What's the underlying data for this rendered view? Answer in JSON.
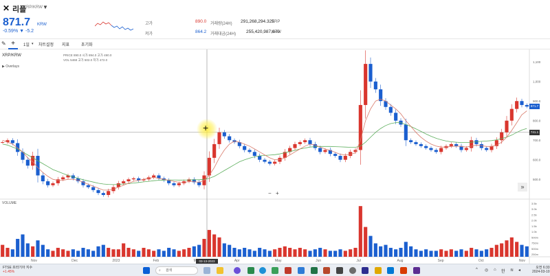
{
  "header": {
    "logo": "✕",
    "name": "리플",
    "pair": "XRP/KRW",
    "price": "871.7",
    "price_unit": "KRW",
    "change": "-0.59% ▼ -5.2",
    "high_label": "고가",
    "high_value": "890.0",
    "low_label": "저가",
    "low_value": "864.2",
    "vol_label": "거래량(24H)",
    "vol_value": "291,268,294.325",
    "vol_unit": "XRP",
    "amt_label": "거래대금(24H)",
    "amt_value": "255,420,987,670",
    "amt_unit": "KRW"
  },
  "toolbar": {
    "interval": "1일",
    "settings": "차트설정",
    "indicators": "지표",
    "reset": "초기화"
  },
  "chart": {
    "symbol": "XRP/KRW",
    "overlays": "▶ Overlays",
    "ohlc_line1": "PRICE   890.0   시가   894.0   고가   490.0",
    "ohlc_line2": "VOL     5468    고가   502.0   저가   472.0",
    "volume_label": "VOLUME",
    "crosshair_date": "03-13-2023",
    "last_price_tag": "871.7",
    "crosshair_price_tag": "741.1",
    "zoom_out": "−",
    "zoom_in": "+",
    "more": "»"
  },
  "chart_data": {
    "type": "candlestick",
    "x_ticks": [
      "Nov",
      "Dec",
      "2023",
      "Feb",
      "Mar",
      "Apr",
      "May",
      "Jun",
      "Jul",
      "Aug",
      "Sep",
      "Oct",
      "Nov"
    ],
    "y_ticks": [
      "1,100",
      "1,000",
      "900.0",
      "800.0",
      "700.0",
      "600.0",
      "500.0"
    ],
    "volume_ticks": [
      "3.5b",
      "3.0b",
      "2.5b",
      "2.0b",
      "1.5b",
      "1.0b",
      "500m",
      "750m",
      "500m",
      "250m"
    ],
    "ylim": [
      420,
      1150
    ],
    "close": [
      690,
      700,
      685,
      640,
      600,
      570,
      620,
      520,
      490,
      470,
      480,
      500,
      510,
      520,
      505,
      490,
      470,
      460,
      445,
      430,
      420,
      440,
      460,
      480,
      490,
      500,
      505,
      495,
      500,
      510,
      520,
      505,
      495,
      480,
      470,
      480,
      490,
      500,
      485,
      470,
      520,
      610,
      680,
      740,
      720,
      700,
      690,
      670,
      650,
      640,
      620,
      600,
      590,
      580,
      590,
      610,
      640,
      660,
      680,
      690,
      700,
      680,
      660,
      640,
      650,
      630,
      620,
      600,
      620,
      640,
      650,
      880,
      1090,
      1000,
      960,
      900,
      870,
      840,
      800,
      780,
      700,
      690,
      680,
      670,
      660,
      650,
      640,
      660,
      670,
      680,
      670,
      650,
      660,
      700,
      680,
      660,
      650,
      670,
      700,
      740,
      800,
      860,
      900,
      880,
      872
    ],
    "ma_fast": [
      700,
      690,
      680,
      660,
      640,
      610,
      590,
      560,
      535,
      515,
      500,
      495,
      495,
      500,
      500,
      495,
      485,
      475,
      465,
      455,
      445,
      445,
      450,
      460,
      470,
      480,
      490,
      495,
      500,
      505,
      510,
      505,
      500,
      495,
      490,
      485,
      485,
      488,
      488,
      485,
      495,
      520,
      560,
      610,
      650,
      680,
      695,
      690,
      680,
      670,
      655,
      640,
      625,
      610,
      600,
      600,
      610,
      625,
      640,
      655,
      670,
      680,
      675,
      665,
      655,
      648,
      638,
      628,
      625,
      628,
      635,
      700,
      800,
      860,
      900,
      910,
      900,
      880,
      860,
      835,
      800,
      770,
      740,
      715,
      695,
      680,
      670,
      665,
      665,
      668,
      670,
      668,
      665,
      670,
      675,
      672,
      668,
      668,
      675,
      690,
      715,
      750,
      790,
      830,
      850
    ],
    "ma_slow": [
      680,
      675,
      665,
      655,
      640,
      625,
      610,
      595,
      580,
      565,
      550,
      540,
      530,
      520,
      512,
      505,
      498,
      492,
      486,
      480,
      476,
      474,
      473,
      474,
      476,
      478,
      481,
      484,
      487,
      490,
      493,
      495,
      496,
      497,
      497,
      496,
      496,
      497,
      498,
      498,
      500,
      505,
      515,
      530,
      545,
      560,
      575,
      590,
      600,
      608,
      615,
      620,
      622,
      624,
      626,
      630,
      636,
      642,
      648,
      655,
      660,
      665,
      667,
      668,
      668,
      668,
      667,
      666,
      665,
      664,
      664,
      670,
      690,
      715,
      740,
      760,
      775,
      785,
      790,
      790,
      780,
      770,
      758,
      745,
      732,
      720,
      710,
      702,
      696,
      692,
      690,
      688,
      688,
      690,
      692,
      694,
      696,
      698,
      702,
      708,
      716,
      726,
      740,
      752,
      760
    ],
    "volume": [
      0.8,
      0.6,
      0.5,
      1.2,
      1.5,
      0.9,
      0.7,
      1.1,
      0.8,
      0.5,
      0.4,
      0.6,
      0.5,
      0.4,
      0.5,
      0.4,
      0.6,
      0.5,
      0.4,
      0.7,
      0.8,
      0.6,
      0.5,
      0.5,
      0.9,
      0.6,
      0.5,
      0.4,
      0.6,
      0.5,
      0.4,
      0.5,
      0.4,
      0.6,
      0.5,
      0.4,
      0.5,
      0.6,
      0.7,
      0.8,
      1.2,
      1.8,
      1.5,
      1.3,
      0.9,
      0.8,
      0.6,
      0.5,
      0.6,
      0.5,
      0.4,
      0.6,
      0.5,
      0.4,
      0.5,
      0.6,
      0.7,
      0.6,
      0.5,
      0.6,
      0.5,
      0.4,
      0.5,
      0.6,
      0.5,
      0.4,
      0.4,
      0.5,
      0.4,
      0.5,
      0.6,
      3.4,
      2.0,
      1.4,
      0.9,
      0.7,
      0.8,
      0.6,
      0.5,
      0.6,
      1.0,
      0.7,
      0.5,
      0.4,
      0.5,
      0.4,
      0.4,
      0.5,
      0.4,
      0.5,
      0.4,
      0.5,
      0.4,
      0.6,
      0.5,
      0.4,
      0.5,
      0.6,
      0.8,
      0.9,
      1.1,
      1.3,
      1.0,
      0.8,
      0.7
    ]
  },
  "taskbar": {
    "widget_line1": "FTSE 프라기아 지수",
    "widget_line2": "+1.45%",
    "search": "검색",
    "time": "오전 6:33",
    "date": "2024-03-10",
    "lang": "한"
  },
  "colors": {
    "up": "#d9362e",
    "down": "#1b5fcf",
    "ma_fast": "#d97a6a",
    "ma_slow": "#5cae5c"
  }
}
